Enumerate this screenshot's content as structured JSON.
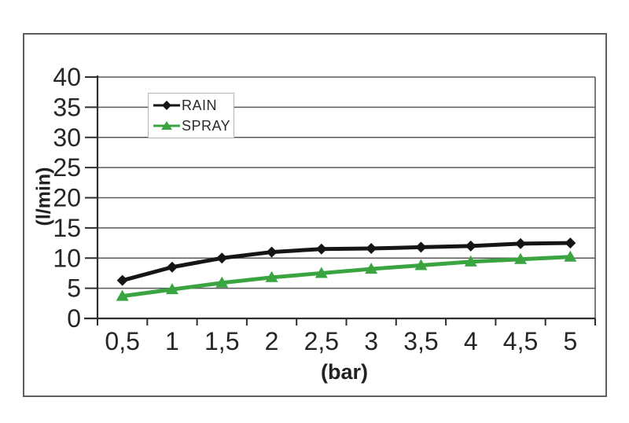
{
  "chart_data": {
    "type": "line",
    "title": "",
    "xlabel": "(bar)",
    "ylabel": "(l/min)",
    "x": [
      0.5,
      1,
      1.5,
      2,
      2.5,
      3,
      3.5,
      4,
      4.5,
      5
    ],
    "x_tick_labels": [
      "0,5",
      "1",
      "1,5",
      "2",
      "2,5",
      "3",
      "3,5",
      "4",
      "4,5",
      "5"
    ],
    "y_ticks": [
      0,
      5,
      10,
      15,
      20,
      25,
      30,
      35,
      40
    ],
    "y_tick_labels": [
      "0",
      "5",
      "10",
      "15",
      "20",
      "25",
      "30",
      "35",
      "40"
    ],
    "ylim": [
      0,
      40
    ],
    "grid": true,
    "legend_position": "inside-top-left",
    "series": [
      {
        "name": "RAIN",
        "color": "#151515",
        "marker": "diamond",
        "values": [
          6.3,
          8.5,
          10.0,
          11.0,
          11.5,
          11.6,
          11.8,
          12.0,
          12.4,
          12.5
        ]
      },
      {
        "name": "SPRAY",
        "color": "#3aa440",
        "marker": "triangle",
        "values": [
          3.7,
          4.8,
          5.9,
          6.8,
          7.5,
          8.2,
          8.8,
          9.4,
          9.8,
          10.2
        ]
      }
    ],
    "colors": {
      "axis": "#2e2e2e",
      "grid": "#5a5a5a",
      "tick_text": "#262626",
      "frame_border": "#5e5e5e"
    }
  }
}
